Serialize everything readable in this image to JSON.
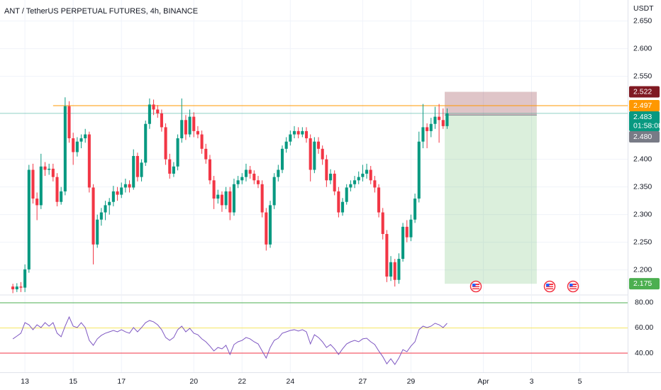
{
  "chart_data": {
    "type": "candlestick",
    "title": "ANT / TetherUS PERPETUAL FUTURES, 4h, BINANCE",
    "unit": "USDT",
    "up_color": "#089981",
    "down_color": "#f23645",
    "xlim": [
      -3.2,
      152.9
    ],
    "xticks": [
      {
        "value": 3,
        "label": "13"
      },
      {
        "value": 15,
        "label": "15"
      },
      {
        "value": 27,
        "label": "17"
      },
      {
        "value": 45,
        "label": "20"
      },
      {
        "value": 57,
        "label": "22"
      },
      {
        "value": 69,
        "label": "24"
      },
      {
        "value": 87,
        "label": "27"
      },
      {
        "value": 99,
        "label": "29"
      },
      {
        "value": 117,
        "label": "Apr"
      },
      {
        "value": 129,
        "label": "3"
      },
      {
        "value": 141,
        "label": "5"
      }
    ],
    "ylim": [
      2.156,
      2.688
    ],
    "yticks": [
      {
        "value": 2.65,
        "label": "2.650"
      },
      {
        "value": 2.6,
        "label": "2.600"
      },
      {
        "value": 2.55,
        "label": "2.550"
      },
      {
        "value": 2.4,
        "label": "2.400"
      },
      {
        "value": 2.35,
        "label": "2.350"
      },
      {
        "value": 2.3,
        "label": "2.300"
      },
      {
        "value": 2.25,
        "label": "2.250"
      },
      {
        "value": 2.2,
        "label": "2.200"
      }
    ],
    "grid": true,
    "ohlc": [
      [
        2.17,
        2.175,
        2.158,
        2.165
      ],
      [
        2.165,
        2.176,
        2.16,
        2.17
      ],
      [
        2.17,
        2.178,
        2.16,
        2.168
      ],
      [
        2.168,
        2.21,
        2.16,
        2.201
      ],
      [
        2.201,
        2.39,
        2.195,
        2.381
      ],
      [
        2.381,
        2.392,
        2.32,
        2.329
      ],
      [
        2.329,
        2.34,
        2.29,
        2.317
      ],
      [
        2.317,
        2.41,
        2.31,
        2.387
      ],
      [
        2.387,
        2.395,
        2.37,
        2.381
      ],
      [
        2.381,
        2.392,
        2.372,
        2.383
      ],
      [
        2.383,
        2.392,
        2.36,
        2.368
      ],
      [
        2.368,
        2.375,
        2.315,
        2.323
      ],
      [
        2.323,
        2.35,
        2.318,
        2.342
      ],
      [
        2.342,
        2.512,
        2.335,
        2.496
      ],
      [
        2.496,
        2.505,
        2.43,
        2.438
      ],
      [
        2.438,
        2.448,
        2.39,
        2.413
      ],
      [
        2.413,
        2.44,
        2.405,
        2.432
      ],
      [
        2.432,
        2.445,
        2.42,
        2.438
      ],
      [
        2.438,
        2.455,
        2.43,
        2.445
      ],
      [
        2.445,
        2.45,
        2.34,
        2.349
      ],
      [
        2.349,
        2.355,
        2.21,
        2.246
      ],
      [
        2.246,
        2.3,
        2.24,
        2.291
      ],
      [
        2.291,
        2.312,
        2.28,
        2.304
      ],
      [
        2.304,
        2.325,
        2.29,
        2.317
      ],
      [
        2.317,
        2.33,
        2.3,
        2.323
      ],
      [
        2.323,
        2.352,
        2.315,
        2.342
      ],
      [
        2.342,
        2.35,
        2.325,
        2.336
      ],
      [
        2.336,
        2.358,
        2.33,
        2.349
      ],
      [
        2.349,
        2.365,
        2.34,
        2.355
      ],
      [
        2.355,
        2.362,
        2.34,
        2.349
      ],
      [
        2.349,
        2.418,
        2.345,
        2.406
      ],
      [
        2.406,
        2.412,
        2.36,
        2.368
      ],
      [
        2.368,
        2.4,
        2.36,
        2.394
      ],
      [
        2.394,
        2.47,
        2.388,
        2.464
      ],
      [
        2.464,
        2.51,
        2.455,
        2.499
      ],
      [
        2.499,
        2.508,
        2.48,
        2.49
      ],
      [
        2.49,
        2.498,
        2.475,
        2.483
      ],
      [
        2.483,
        2.49,
        2.45,
        2.458
      ],
      [
        2.458,
        2.465,
        2.39,
        2.4
      ],
      [
        2.4,
        2.41,
        2.365,
        2.374
      ],
      [
        2.374,
        2.395,
        2.368,
        2.387
      ],
      [
        2.387,
        2.445,
        2.38,
        2.438
      ],
      [
        2.438,
        2.51,
        2.43,
        2.471
      ],
      [
        2.471,
        2.48,
        2.435,
        2.445
      ],
      [
        2.445,
        2.49,
        2.44,
        2.477
      ],
      [
        2.477,
        2.485,
        2.44,
        2.451
      ],
      [
        2.451,
        2.46,
        2.438,
        2.445
      ],
      [
        2.445,
        2.452,
        2.41,
        2.419
      ],
      [
        2.419,
        2.428,
        2.392,
        2.4
      ],
      [
        2.4,
        2.408,
        2.355,
        2.362
      ],
      [
        2.362,
        2.37,
        2.31,
        2.329
      ],
      [
        2.329,
        2.345,
        2.32,
        2.336
      ],
      [
        2.336,
        2.342,
        2.305,
        2.317
      ],
      [
        2.317,
        2.35,
        2.31,
        2.342
      ],
      [
        2.342,
        2.35,
        2.29,
        2.304
      ],
      [
        2.304,
        2.365,
        2.298,
        2.355
      ],
      [
        2.355,
        2.37,
        2.348,
        2.362
      ],
      [
        2.362,
        2.375,
        2.355,
        2.368
      ],
      [
        2.368,
        2.392,
        2.36,
        2.381
      ],
      [
        2.381,
        2.388,
        2.365,
        2.374
      ],
      [
        2.374,
        2.38,
        2.355,
        2.362
      ],
      [
        2.362,
        2.37,
        2.348,
        2.355
      ],
      [
        2.355,
        2.362,
        2.295,
        2.304
      ],
      [
        2.304,
        2.312,
        2.235,
        2.246
      ],
      [
        2.246,
        2.325,
        2.24,
        2.317
      ],
      [
        2.317,
        2.375,
        2.31,
        2.368
      ],
      [
        2.368,
        2.39,
        2.36,
        2.381
      ],
      [
        2.381,
        2.425,
        2.375,
        2.419
      ],
      [
        2.419,
        2.44,
        2.412,
        2.432
      ],
      [
        2.432,
        2.452,
        2.425,
        2.445
      ],
      [
        2.445,
        2.46,
        2.438,
        2.451
      ],
      [
        2.451,
        2.458,
        2.438,
        2.445
      ],
      [
        2.445,
        2.458,
        2.44,
        2.451
      ],
      [
        2.451,
        2.458,
        2.43,
        2.438
      ],
      [
        2.438,
        2.445,
        2.36,
        2.381
      ],
      [
        2.381,
        2.44,
        2.375,
        2.432
      ],
      [
        2.432,
        2.44,
        2.41,
        2.419
      ],
      [
        2.419,
        2.425,
        2.39,
        2.4
      ],
      [
        2.4,
        2.408,
        2.35,
        2.362
      ],
      [
        2.362,
        2.382,
        2.355,
        2.374
      ],
      [
        2.374,
        2.38,
        2.335,
        2.342
      ],
      [
        2.342,
        2.35,
        2.295,
        2.304
      ],
      [
        2.304,
        2.33,
        2.298,
        2.323
      ],
      [
        2.323,
        2.355,
        2.318,
        2.349
      ],
      [
        2.349,
        2.362,
        2.342,
        2.355
      ],
      [
        2.355,
        2.37,
        2.348,
        2.362
      ],
      [
        2.362,
        2.378,
        2.355,
        2.368
      ],
      [
        2.368,
        2.39,
        2.36,
        2.374
      ],
      [
        2.374,
        2.392,
        2.365,
        2.381
      ],
      [
        2.381,
        2.388,
        2.355,
        2.362
      ],
      [
        2.362,
        2.37,
        2.34,
        2.349
      ],
      [
        2.349,
        2.355,
        2.295,
        2.304
      ],
      [
        2.304,
        2.312,
        2.255,
        2.265
      ],
      [
        2.265,
        2.272,
        2.178,
        2.188
      ],
      [
        2.188,
        2.225,
        2.18,
        2.214
      ],
      [
        2.214,
        2.22,
        2.17,
        2.182
      ],
      [
        2.182,
        2.23,
        2.175,
        2.22
      ],
      [
        2.22,
        2.285,
        2.215,
        2.278
      ],
      [
        2.278,
        2.29,
        2.25,
        2.259
      ],
      [
        2.259,
        2.3,
        2.252,
        2.291
      ],
      [
        2.291,
        2.338,
        2.285,
        2.329
      ],
      [
        2.329,
        2.45,
        2.322,
        2.432
      ],
      [
        2.432,
        2.5,
        2.42,
        2.458
      ],
      [
        2.458,
        2.465,
        2.42,
        2.451
      ],
      [
        2.451,
        2.475,
        2.44,
        2.464
      ],
      [
        2.464,
        2.495,
        2.455,
        2.477
      ],
      [
        2.477,
        2.5,
        2.43,
        2.471
      ],
      [
        2.471,
        2.492,
        2.455,
        2.46
      ],
      [
        2.46,
        2.492,
        2.455,
        2.483
      ]
    ],
    "hline": {
      "value": 2.497,
      "start": 10,
      "color": "#ff9800"
    },
    "last_price_line": {
      "value": 2.483,
      "color": "#089981"
    },
    "position": {
      "start": 107.4,
      "end": 130.3,
      "entry": 2.48,
      "stop": 2.522,
      "target": 2.175
    },
    "price_labels": [
      {
        "value": 2.522,
        "color": "#801922"
      },
      {
        "value": 2.497,
        "color": "#ff9800"
      },
      {
        "value": 2.483,
        "color": "#089981",
        "countdown": "01:58:08"
      },
      {
        "value": 2.48,
        "label": "2.480",
        "color": "#787b86"
      },
      {
        "value": 2.175,
        "color": "#4caf50"
      }
    ],
    "rsi": {
      "color": "#7e57c2",
      "ylim": [
        27.6,
        85.6
      ],
      "yticks": [
        {
          "value": 80,
          "label": "80.00"
        },
        {
          "value": 60,
          "label": "60.00"
        },
        {
          "value": 40,
          "label": "40.00"
        }
      ],
      "level_colors": [
        "#4caf50",
        "#f5e663",
        "#f23645"
      ],
      "values": [
        51.3,
        53.5,
        55.8,
        64.2,
        62.5,
        58.6,
        62.5,
        60.3,
        64.2,
        61.4,
        64.2,
        55.8,
        53.0,
        61.4,
        68.7,
        61.4,
        60.3,
        64.2,
        60.3,
        50.1,
        46.2,
        51.3,
        54.1,
        55.8,
        56.9,
        58.0,
        56.9,
        58.6,
        56.9,
        55.8,
        60.3,
        56.9,
        60.3,
        64.2,
        65.9,
        64.8,
        62.5,
        58.6,
        52.4,
        50.1,
        52.4,
        58.6,
        61.4,
        56.9,
        59.7,
        55.8,
        54.6,
        51.3,
        49.0,
        45.6,
        41.7,
        44.5,
        43.4,
        46.2,
        38.9,
        46.8,
        49.0,
        50.1,
        52.4,
        51.3,
        49.0,
        47.3,
        41.7,
        36.1,
        44.5,
        50.1,
        51.8,
        55.8,
        56.9,
        58.0,
        58.6,
        57.5,
        58.6,
        56.9,
        47.3,
        54.6,
        52.4,
        49.0,
        44.5,
        46.8,
        43.4,
        38.9,
        43.4,
        47.3,
        49.0,
        50.1,
        49.0,
        51.3,
        51.8,
        49.0,
        46.8,
        41.7,
        37.2,
        31.5,
        35.5,
        31.0,
        36.1,
        42.8,
        41.1,
        45.6,
        49.0,
        58.6,
        61.4,
        60.3,
        61.4,
        63.7,
        62.5,
        60.3,
        63.7
      ]
    }
  }
}
